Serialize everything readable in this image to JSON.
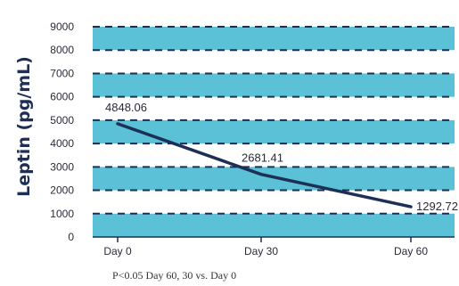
{
  "chart_data": {
    "type": "line",
    "title": "",
    "xlabel": "",
    "ylabel": "Leptin (pg/mL)",
    "ylim": [
      0,
      9000
    ],
    "yticks": [
      0,
      1000,
      2000,
      3000,
      4000,
      5000,
      6000,
      7000,
      8000,
      9000
    ],
    "categories": [
      "Day 0",
      "Day 30",
      "Day 60"
    ],
    "series": [
      {
        "values": [
          4848.06,
          2681.41,
          1292.72
        ]
      }
    ],
    "data_labels": [
      "4848.06",
      "2681.41",
      "1292.72"
    ],
    "footnote": "P<0.05 Day 60, 30 vs. Day 0",
    "grid": true,
    "colors": {
      "band": "#5ac1d6",
      "line": "#1e2f56",
      "dash": "#1e2f56"
    }
  }
}
